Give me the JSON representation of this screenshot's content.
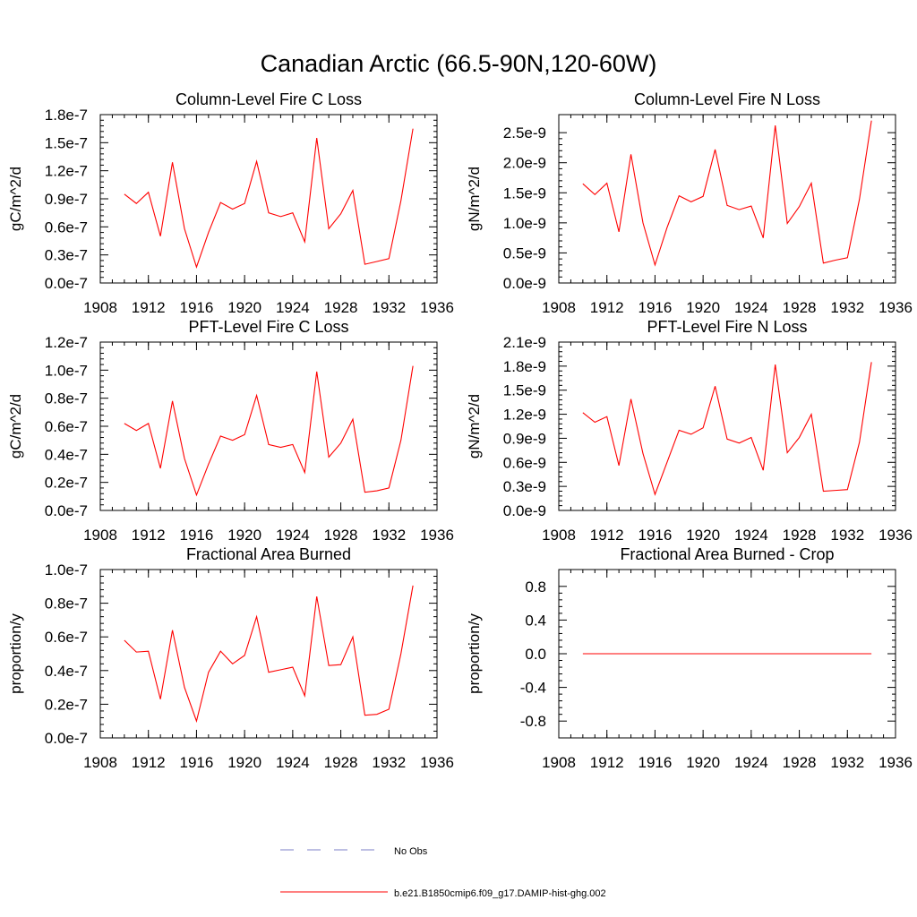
{
  "figure": {
    "title": "Canadian Arctic (66.5-90N,120-60W)"
  },
  "legend": {
    "entries": [
      {
        "label": "No Obs",
        "color": "#7b7fc7",
        "style": "dashed"
      },
      {
        "label": "b.e21.B1850cmip6.f09_g17.DAMIP-hist-ghg.002",
        "color": "#ff0000",
        "style": "solid"
      }
    ]
  },
  "chart_data": [
    {
      "type": "line",
      "title": "Column-Level Fire C Loss",
      "ylabel": "gC/m^2/d",
      "xlim": [
        1908,
        1936
      ],
      "ylim": [
        0,
        1.8e-07
      ],
      "xticks": [
        1908,
        1912,
        1916,
        1920,
        1924,
        1928,
        1932,
        1936
      ],
      "xtick_labels": [
        "1908",
        "1912",
        "1916",
        "1920",
        "1924",
        "1928",
        "1932",
        "1936"
      ],
      "yticks": [
        0,
        3e-08,
        6e-08,
        9e-08,
        1.2e-07,
        1.5e-07,
        1.8e-07
      ],
      "ytick_labels": [
        "0.0e-7",
        "0.3e-7",
        "0.6e-7",
        "0.9e-7",
        "1.2e-7",
        "1.5e-7",
        "1.8e-7"
      ],
      "x": [
        1910,
        1911,
        1912,
        1913,
        1914,
        1915,
        1916,
        1917,
        1918,
        1919,
        1920,
        1921,
        1922,
        1923,
        1924,
        1925,
        1926,
        1927,
        1928,
        1929,
        1930,
        1931,
        1932,
        1933,
        1934
      ],
      "series": [
        {
          "color": "#ff0000",
          "values": [
            9.5e-08,
            8.5e-08,
            9.7e-08,
            5e-08,
            1.29e-07,
            5.8e-08,
            1.7e-08,
            5.4e-08,
            8.6e-08,
            7.9e-08,
            8.5e-08,
            1.3e-07,
            7.5e-08,
            7.1e-08,
            7.5e-08,
            4.4e-08,
            1.55e-07,
            5.8e-08,
            7.4e-08,
            9.9e-08,
            2e-08,
            2.3e-08,
            2.6e-08,
            8.8e-08,
            1.65e-07
          ]
        }
      ]
    },
    {
      "type": "line",
      "title": "Column-Level Fire N Loss",
      "ylabel": "gN/m^2/d",
      "xlim": [
        1908,
        1936
      ],
      "ylim": [
        0,
        2.8e-09
      ],
      "xticks": [
        1908,
        1912,
        1916,
        1920,
        1924,
        1928,
        1932,
        1936
      ],
      "xtick_labels": [
        "1908",
        "1912",
        "1916",
        "1920",
        "1924",
        "1928",
        "1932",
        "1936"
      ],
      "yticks": [
        0,
        5e-10,
        1e-09,
        1.5e-09,
        2e-09,
        2.5e-09
      ],
      "ytick_labels": [
        "0.0e-9",
        "0.5e-9",
        "1.0e-9",
        "1.5e-9",
        "2.0e-9",
        "2.5e-9"
      ],
      "x": [
        1910,
        1911,
        1912,
        1913,
        1914,
        1915,
        1916,
        1917,
        1918,
        1919,
        1920,
        1921,
        1922,
        1923,
        1924,
        1925,
        1926,
        1927,
        1928,
        1929,
        1930,
        1931,
        1932,
        1933,
        1934
      ],
      "series": [
        {
          "color": "#ff0000",
          "values": [
            1.65e-09,
            1.47e-09,
            1.66e-09,
            8.5e-10,
            2.14e-09,
            1e-09,
            3e-10,
            9.2e-10,
            1.45e-09,
            1.35e-09,
            1.44e-09,
            2.22e-09,
            1.29e-09,
            1.22e-09,
            1.28e-09,
            7.5e-10,
            2.62e-09,
            9.9e-10,
            1.27e-09,
            1.66e-09,
            3.3e-10,
            3.8e-10,
            4.2e-10,
            1.39e-09,
            2.7e-09
          ]
        }
      ]
    },
    {
      "type": "line",
      "title": "PFT-Level Fire C Loss",
      "ylabel": "gC/m^2/d",
      "xlim": [
        1908,
        1936
      ],
      "ylim": [
        0,
        1.2e-07
      ],
      "xticks": [
        1908,
        1912,
        1916,
        1920,
        1924,
        1928,
        1932,
        1936
      ],
      "xtick_labels": [
        "1908",
        "1912",
        "1916",
        "1920",
        "1924",
        "1928",
        "1932",
        "1936"
      ],
      "yticks": [
        0,
        2e-08,
        4e-08,
        6e-08,
        8e-08,
        1e-07,
        1.2e-07
      ],
      "ytick_labels": [
        "0.0e-7",
        "0.2e-7",
        "0.4e-7",
        "0.6e-7",
        "0.8e-7",
        "1.0e-7",
        "1.2e-7"
      ],
      "x": [
        1910,
        1911,
        1912,
        1913,
        1914,
        1915,
        1916,
        1917,
        1918,
        1919,
        1920,
        1921,
        1922,
        1923,
        1924,
        1925,
        1926,
        1927,
        1928,
        1929,
        1930,
        1931,
        1932,
        1933,
        1934
      ],
      "series": [
        {
          "color": "#ff0000",
          "values": [
            6.2e-08,
            5.7e-08,
            6.2e-08,
            3e-08,
            7.8e-08,
            3.7e-08,
            1.1e-08,
            3.3e-08,
            5.3e-08,
            5e-08,
            5.4e-08,
            8.2e-08,
            4.7e-08,
            4.5e-08,
            4.7e-08,
            2.7e-08,
            9.9e-08,
            3.8e-08,
            4.8e-08,
            6.5e-08,
            1.3e-08,
            1.4e-08,
            1.6e-08,
            5e-08,
            1.03e-07
          ]
        }
      ]
    },
    {
      "type": "line",
      "title": "PFT-Level Fire N Loss",
      "ylabel": "gN/m^2/d",
      "xlim": [
        1908,
        1936
      ],
      "ylim": [
        0,
        2.1e-09
      ],
      "xticks": [
        1908,
        1912,
        1916,
        1920,
        1924,
        1928,
        1932,
        1936
      ],
      "xtick_labels": [
        "1908",
        "1912",
        "1916",
        "1920",
        "1924",
        "1928",
        "1932",
        "1936"
      ],
      "yticks": [
        0,
        3e-10,
        6e-10,
        9e-10,
        1.2e-09,
        1.5e-09,
        1.8e-09,
        2.1e-09
      ],
      "ytick_labels": [
        "0.0e-9",
        "0.3e-9",
        "0.6e-9",
        "0.9e-9",
        "1.2e-9",
        "1.5e-9",
        "1.8e-9",
        "2.1e-9"
      ],
      "x": [
        1910,
        1911,
        1912,
        1913,
        1914,
        1915,
        1916,
        1917,
        1918,
        1919,
        1920,
        1921,
        1922,
        1923,
        1924,
        1925,
        1926,
        1927,
        1928,
        1929,
        1930,
        1931,
        1932,
        1933,
        1934
      ],
      "series": [
        {
          "color": "#ff0000",
          "values": [
            1.22e-09,
            1.1e-09,
            1.17e-09,
            5.6e-10,
            1.39e-09,
            7.1e-10,
            2e-10,
            6e-10,
            1e-09,
            9.5e-10,
            1.03e-09,
            1.55e-09,
            8.9e-10,
            8.4e-10,
            9.1e-10,
            5e-10,
            1.82e-09,
            7.2e-10,
            9.1e-10,
            1.2e-09,
            2.4e-10,
            2.5e-10,
            2.6e-10,
            8.5e-10,
            1.85e-09
          ]
        }
      ]
    },
    {
      "type": "line",
      "title": "Fractional Area Burned",
      "ylabel": "proportion/y",
      "xlim": [
        1908,
        1936
      ],
      "ylim": [
        0,
        1e-07
      ],
      "xticks": [
        1908,
        1912,
        1916,
        1920,
        1924,
        1928,
        1932,
        1936
      ],
      "xtick_labels": [
        "1908",
        "1912",
        "1916",
        "1920",
        "1924",
        "1928",
        "1932",
        "1936"
      ],
      "yticks": [
        0,
        2e-08,
        4e-08,
        6e-08,
        8e-08,
        1e-07
      ],
      "ytick_labels": [
        "0.0e-7",
        "0.2e-7",
        "0.4e-7",
        "0.6e-7",
        "0.8e-7",
        "1.0e-7"
      ],
      "x": [
        1910,
        1911,
        1912,
        1913,
        1914,
        1915,
        1916,
        1917,
        1918,
        1919,
        1920,
        1921,
        1922,
        1923,
        1924,
        1925,
        1926,
        1927,
        1928,
        1929,
        1930,
        1931,
        1932,
        1933,
        1934
      ],
      "series": [
        {
          "color": "#ff0000",
          "values": [
            5.8e-08,
            5.1e-08,
            5.15e-08,
            2.3e-08,
            6.4e-08,
            3e-08,
            1e-08,
            3.9e-08,
            5.15e-08,
            4.4e-08,
            4.9e-08,
            7.2e-08,
            3.9e-08,
            4.05e-08,
            4.2e-08,
            2.5e-08,
            8.4e-08,
            4.3e-08,
            4.35e-08,
            6e-08,
            1.35e-08,
            1.4e-08,
            1.7e-08,
            5e-08,
            9.05e-08
          ]
        }
      ]
    },
    {
      "type": "line",
      "title": "Fractional Area Burned - Crop",
      "ylabel": "proportion/y",
      "xlim": [
        1908,
        1936
      ],
      "ylim": [
        -1,
        1
      ],
      "xticks": [
        1908,
        1912,
        1916,
        1920,
        1924,
        1928,
        1932,
        1936
      ],
      "xtick_labels": [
        "1908",
        "1912",
        "1916",
        "1920",
        "1924",
        "1928",
        "1932",
        "1936"
      ],
      "yticks": [
        -0.8,
        -0.4,
        0,
        0.4,
        0.8
      ],
      "ytick_labels": [
        "-0.8",
        "-0.4",
        "0.0",
        "0.4",
        "0.8"
      ],
      "x": [
        1910,
        1911,
        1912,
        1913,
        1914,
        1915,
        1916,
        1917,
        1918,
        1919,
        1920,
        1921,
        1922,
        1923,
        1924,
        1925,
        1926,
        1927,
        1928,
        1929,
        1930,
        1931,
        1932,
        1933,
        1934
      ],
      "series": [
        {
          "color": "#ff0000",
          "values": [
            0,
            0,
            0,
            0,
            0,
            0,
            0,
            0,
            0,
            0,
            0,
            0,
            0,
            0,
            0,
            0,
            0,
            0,
            0,
            0,
            0,
            0,
            0,
            0,
            0
          ]
        }
      ]
    }
  ]
}
